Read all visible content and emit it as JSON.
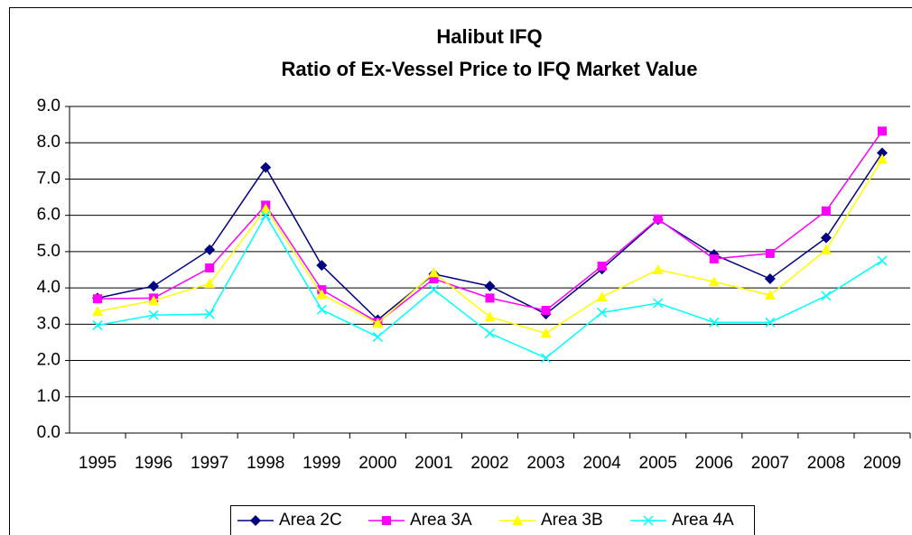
{
  "chart_data": {
    "type": "line",
    "title": "Halibut IFQ",
    "subtitle": "Ratio of Ex-Vessel Price to IFQ Market Value",
    "categories": [
      "1995",
      "1996",
      "1997",
      "1998",
      "1999",
      "2000",
      "2001",
      "2002",
      "2003",
      "2004",
      "2005",
      "2006",
      "2007",
      "2008",
      "2009"
    ],
    "series": [
      {
        "name": "Area 2C",
        "color": "#000080",
        "marker": "diamond",
        "values": [
          3.72,
          4.05,
          5.05,
          7.32,
          4.62,
          3.12,
          4.38,
          4.05,
          3.28,
          4.52,
          5.88,
          4.92,
          4.25,
          5.38,
          7.72
        ]
      },
      {
        "name": "Area 3A",
        "color": "#ff00ff",
        "marker": "square",
        "values": [
          3.7,
          3.72,
          4.55,
          6.28,
          3.95,
          3.05,
          4.25,
          3.72,
          3.38,
          4.6,
          5.9,
          4.8,
          4.95,
          6.12,
          8.32
        ]
      },
      {
        "name": "Area 3B",
        "color": "#ffff00",
        "marker": "triangle",
        "values": [
          3.35,
          3.65,
          4.12,
          6.18,
          3.82,
          3.02,
          4.42,
          3.2,
          2.75,
          3.75,
          4.5,
          4.17,
          3.8,
          5.05,
          7.55
        ]
      },
      {
        "name": "Area 4A",
        "color": "#00ffff",
        "marker": "x",
        "values": [
          2.97,
          3.25,
          3.28,
          6.0,
          3.4,
          2.65,
          3.95,
          2.75,
          2.07,
          3.32,
          3.58,
          3.05,
          3.05,
          3.78,
          4.75
        ]
      }
    ],
    "ylim": [
      0,
      9
    ],
    "yticks": [
      {
        "value": 0,
        "label": "0.0"
      },
      {
        "value": 1,
        "label": "1.0"
      },
      {
        "value": 2,
        "label": "2.0"
      },
      {
        "value": 3,
        "label": "3.0"
      },
      {
        "value": 4,
        "label": "4.0"
      },
      {
        "value": 5,
        "label": "5.0"
      },
      {
        "value": 6,
        "label": "6.0"
      },
      {
        "value": 7,
        "label": "7.0"
      },
      {
        "value": 8,
        "label": "8.0"
      },
      {
        "value": 9,
        "label": "9.0"
      }
    ],
    "grid": true,
    "legend": "bottom"
  }
}
